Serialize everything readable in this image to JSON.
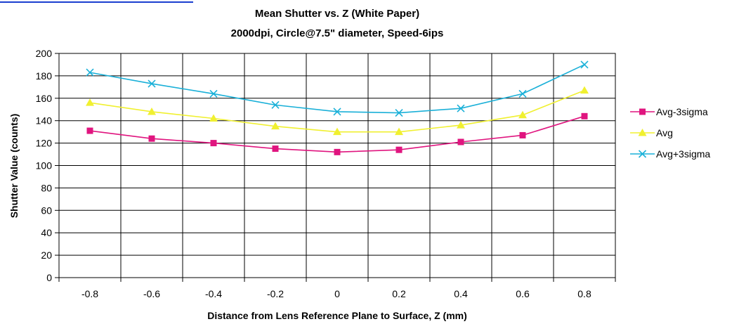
{
  "chart_data": {
    "type": "line",
    "title": "Mean Shutter vs. Z (White Paper)",
    "subtitle": "2000dpi, Circle@7.5\" diameter, Speed-6ips",
    "xlabel": "Distance from Lens Reference Plane to Surface, Z (mm)",
    "ylabel": "Shutter Value (counts)",
    "categories": [
      "-0.8",
      "-0.6",
      "-0.4",
      "-0.2",
      "0",
      "0.2",
      "0.4",
      "0.6",
      "0.8"
    ],
    "ylim": [
      0,
      200
    ],
    "yticks": [
      "0",
      "20",
      "40",
      "60",
      "80",
      "100",
      "120",
      "140",
      "160",
      "180",
      "200"
    ],
    "grid": true,
    "legend_position": "right",
    "series": [
      {
        "name": "Avg-3sigma",
        "color": "#e0157f",
        "marker": "square",
        "values": [
          131,
          124,
          120,
          115,
          112,
          114,
          121,
          127,
          144
        ]
      },
      {
        "name": "Avg",
        "color": "#f0f030",
        "marker": "triangle",
        "values": [
          156,
          148,
          142,
          135,
          130,
          130,
          136,
          145,
          167
        ]
      },
      {
        "name": "Avg+3sigma",
        "color": "#1ab0d8",
        "marker": "x",
        "values": [
          183,
          173,
          164,
          154,
          148,
          147,
          151,
          164,
          190
        ]
      }
    ]
  }
}
